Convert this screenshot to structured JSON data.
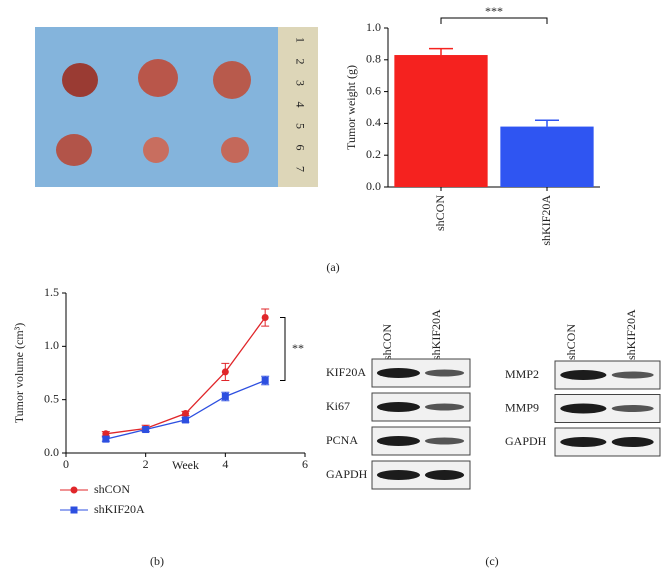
{
  "chart_data": [
    {
      "type": "bar",
      "ylabel": "Tumor weight (g)",
      "categories": [
        "shCON",
        "shKIF20A"
      ],
      "values": [
        0.83,
        0.38
      ],
      "errors": [
        0.04,
        0.04
      ],
      "colors": [
        "#f5221f",
        "#2f55f2"
      ],
      "ylim": [
        0,
        1.0
      ],
      "yticks": [
        {
          "value": 0,
          "label": "0.0"
        },
        {
          "value": 0.2,
          "label": "0.2"
        },
        {
          "value": 0.4,
          "label": "0.4"
        },
        {
          "value": 0.6,
          "label": "0.6"
        },
        {
          "value": 0.8,
          "label": "0.8"
        },
        {
          "value": 1.0,
          "label": "1.0"
        }
      ],
      "annotation": "***"
    },
    {
      "type": "line",
      "xlabel": "Week",
      "ylabel": "Tumor volume (cm³)",
      "x": [
        1,
        2,
        3,
        4,
        5
      ],
      "series": [
        {
          "name": "shCON",
          "color": "#e0262a",
          "values": [
            0.18,
            0.23,
            0.37,
            0.76,
            1.27
          ],
          "errors": [
            0.02,
            0.03,
            0.02,
            0.08,
            0.08
          ]
        },
        {
          "name": "shKIF20A",
          "color": "#2d4fe0",
          "values": [
            0.13,
            0.22,
            0.31,
            0.53,
            0.68
          ],
          "errors": [
            0.02,
            0.02,
            0.02,
            0.04,
            0.04
          ]
        }
      ],
      "xlim": [
        0,
        6
      ],
      "xticks": [
        0,
        2,
        4,
        6
      ],
      "ylim": [
        0,
        1.5
      ],
      "yticks": [
        {
          "value": 0,
          "label": "0.0"
        },
        {
          "value": 0.5,
          "label": "0.5"
        },
        {
          "value": 1.0,
          "label": "1.0"
        },
        {
          "value": 1.5,
          "label": "1.5"
        }
      ],
      "annotation": "**"
    }
  ],
  "panel_labels": [
    "(a)",
    "(b)",
    "(c)"
  ],
  "ruler_labels": [
    "1",
    "2",
    "3",
    "4",
    "5",
    "6",
    "7"
  ],
  "blots": [
    {
      "columns": [
        "shCON",
        "shKIF20A"
      ],
      "rows": [
        "KIF20A",
        "Ki67",
        "PCNA",
        "GAPDH"
      ]
    },
    {
      "columns": [
        "shCON",
        "shKIF20A"
      ],
      "rows": [
        "MMP2",
        "MMP9",
        "GAPDH"
      ]
    }
  ]
}
